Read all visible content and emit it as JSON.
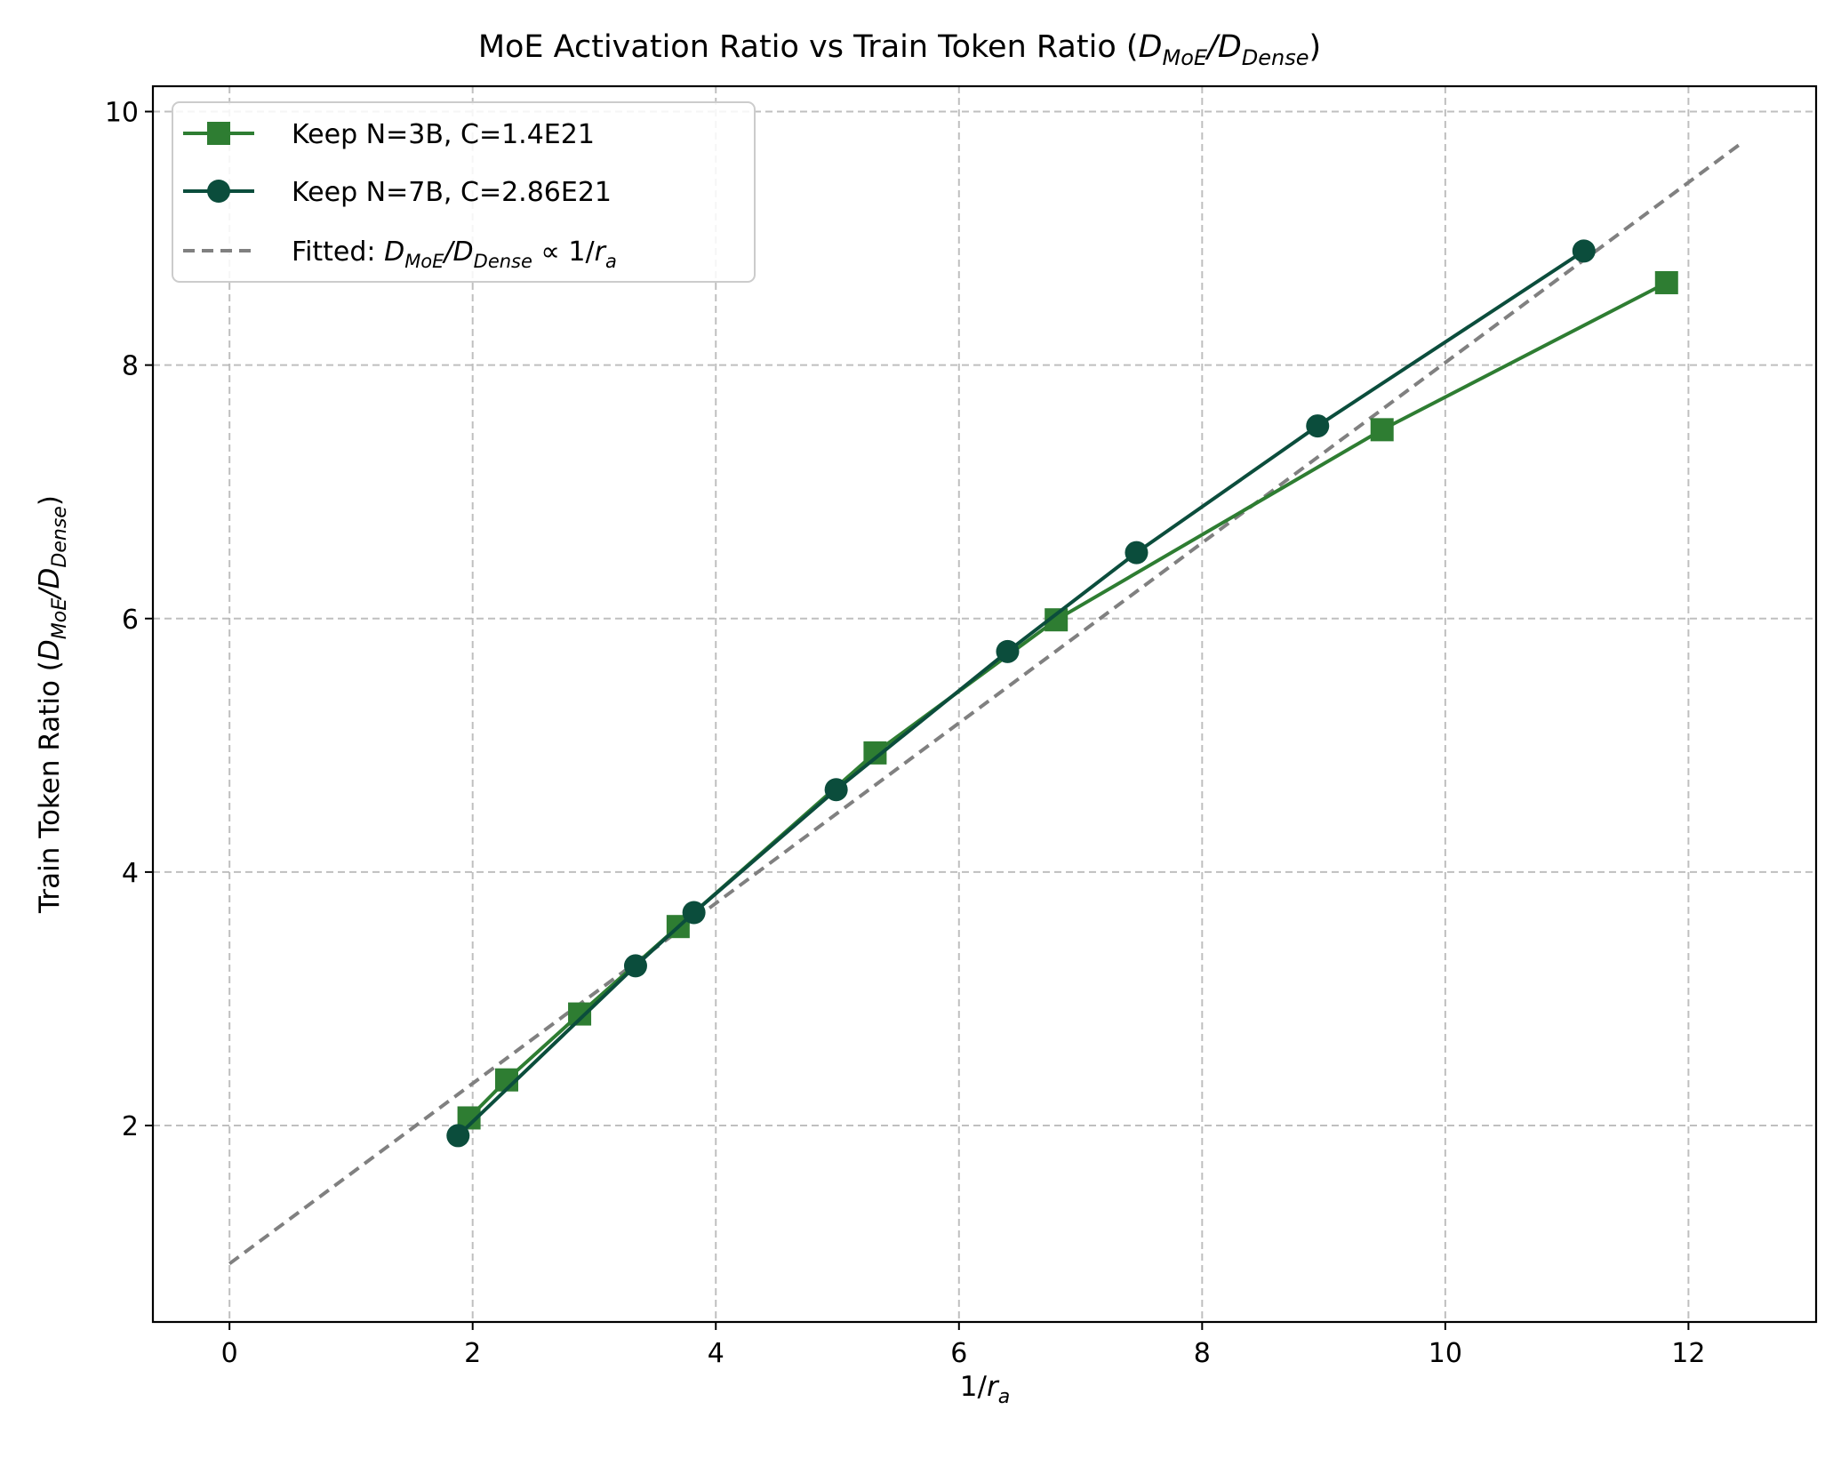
{
  "chart_data": {
    "type": "line",
    "title": {
      "prefix": "MoE Activation Ratio vs Train Token Ratio (",
      "D1": "D",
      "sub1": "MoE",
      "slash": "/",
      "D2": "D",
      "sub2": "Dense",
      "suffix": ")"
    },
    "xlabel": {
      "main": "1/",
      "var": "r",
      "sub": "a"
    },
    "ylabel": {
      "prefix": "Train Token Ratio (",
      "D1": "D",
      "sub1": "MoE",
      "slash": "/",
      "D2": "D",
      "sub2": "Dense",
      "suffix": ")"
    },
    "xlim": [
      -0.63,
      13.05
    ],
    "ylim": [
      0.45,
      10.2
    ],
    "xticks": [
      0,
      2,
      4,
      6,
      8,
      10,
      12
    ],
    "yticks": [
      2,
      4,
      6,
      8,
      10
    ],
    "grid": true,
    "legend_position": "top-left",
    "series": [
      {
        "name": "Keep N=3B, C=1.4E21",
        "color": "#2e7d32",
        "marker": "square",
        "x": [
          1.97,
          2.28,
          2.88,
          3.69,
          5.31,
          6.8,
          9.48,
          11.82
        ],
        "y": [
          2.06,
          2.36,
          2.88,
          3.57,
          4.94,
          5.99,
          7.49,
          8.65
        ]
      },
      {
        "name": "Keep N=7B, C=2.86E21",
        "color": "#0b4d3c",
        "marker": "circle",
        "x": [
          1.88,
          3.34,
          3.82,
          4.99,
          6.4,
          7.46,
          8.95,
          11.14
        ],
        "y": [
          1.92,
          3.26,
          3.68,
          4.65,
          5.74,
          6.52,
          7.52,
          8.9
        ]
      },
      {
        "name": {
          "prefix": "Fitted: ",
          "D1": "D",
          "sub1": "MoE",
          "slash": "/",
          "D2": "D",
          "sub2": "Dense",
          "prop": " ∝ 1/",
          "var": "r",
          "sub": "a"
        },
        "color": "#808080",
        "style": "dashed",
        "x": [
          0,
          12.42
        ],
        "y": [
          0.91,
          9.74
        ]
      }
    ]
  }
}
